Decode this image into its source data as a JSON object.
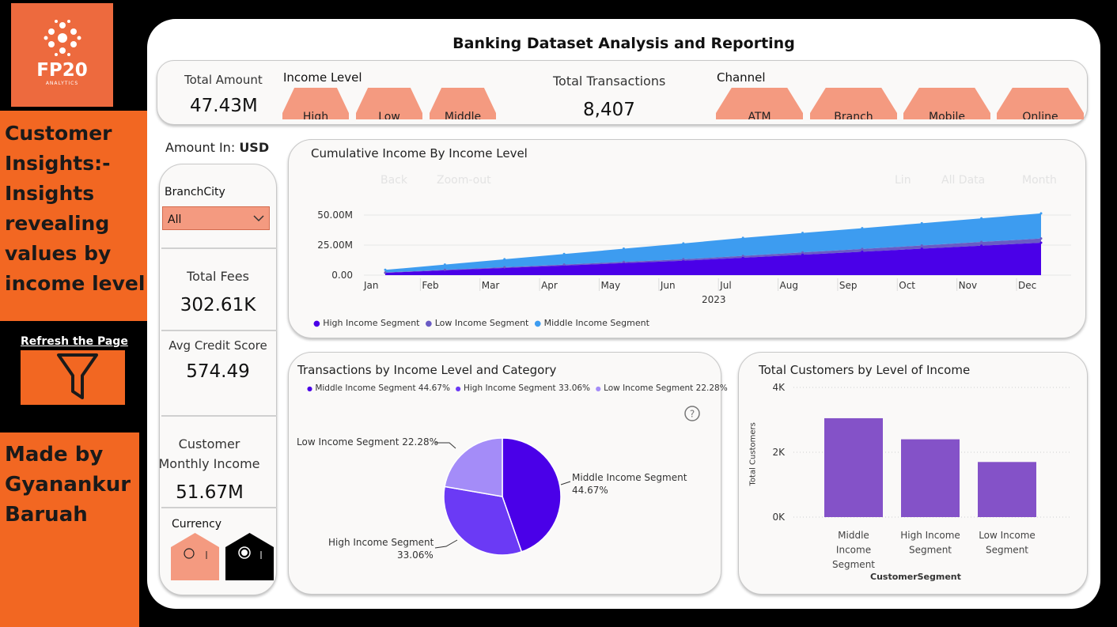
{
  "logo": {
    "word": "FP20",
    "sub": "ANALYTICS"
  },
  "left_note": "Customer Insights:- Insights revealing values by income level",
  "refresh_label": "Refresh the Page",
  "made_by": "Made by Gyanankur Baruah",
  "title": "Banking Dataset Analysis and Reporting",
  "kpis": {
    "total_amount_label": "Total Amount",
    "total_amount": "47.43M",
    "total_transactions_label": "Total Transactions",
    "total_transactions": "8,407",
    "total_fees_label": "Total Fees",
    "total_fees": "302.61K",
    "avg_credit_label": "Avg Credit Score",
    "avg_credit": "574.49",
    "monthly_income_label_1": "Customer",
    "monthly_income_label_2": "Monthly Income",
    "monthly_income": "51.67M"
  },
  "income_level": {
    "title": "Income Level",
    "options": [
      "High",
      "Low",
      "Middle"
    ]
  },
  "channel": {
    "title": "Channel",
    "options": [
      "ATM",
      "Branch",
      "Mobile",
      "Online"
    ]
  },
  "amount_in": {
    "label": "Amount In:",
    "value": "USD"
  },
  "branch_city": {
    "title": "BranchCity",
    "selected": "All"
  },
  "currency": {
    "title": "Currency"
  },
  "colors": {
    "high": "#4a00e8",
    "low": "#6a5bc4",
    "middle": "#3d9cf0",
    "bar": "#8452c8",
    "orange": "#f26722",
    "salmon": "#f49a80"
  },
  "area_chart": {
    "title": "Cumulative Income By Income Level",
    "controls": [
      "Back",
      "Zoom-out",
      "Lin",
      "All Data",
      "Month"
    ],
    "year_label": "2023",
    "legend": [
      "High Income Segment",
      "Low Income Segment",
      "Middle Income Segment"
    ]
  },
  "pie_chart": {
    "title": "Transactions by Income Level and Category",
    "legend": [
      "Middle Income Segment 44.67%",
      "High Income Segment 33.06%",
      "Low Income Segment 22.28%"
    ],
    "label_low": "Low Income Segment 22.28%",
    "label_middle_1": "Middle Income Segment",
    "label_middle_2": "44.67%",
    "label_high_1": "High Income Segment",
    "label_high_2": "33.06%"
  },
  "bar_chart": {
    "title": "Total Customers by Level of Income",
    "ylabel": "Total Customers",
    "xlabel": "CustomerSegment"
  },
  "chart_data": [
    {
      "type": "area",
      "title": "Cumulative Income By Income Level",
      "x": [
        "Jan",
        "Feb",
        "Mar",
        "Apr",
        "May",
        "Jun",
        "Jul",
        "Aug",
        "Sep",
        "Oct",
        "Nov",
        "Dec"
      ],
      "xlabel": "2023",
      "yticks": [
        "0.00",
        "25.00M",
        "50.00M"
      ],
      "ylim": [
        0,
        60000000
      ],
      "stacked": true,
      "series": [
        {
          "name": "High Income Segment",
          "values": [
            2000000,
            4000000,
            6000000,
            8000000,
            10000000,
            12000000,
            14500000,
            17000000,
            19500000,
            22000000,
            24500000,
            27000000
          ]
        },
        {
          "name": "Low Income Segment",
          "values": [
            200000,
            400000,
            600000,
            800000,
            1000000,
            1200000,
            1500000,
            1900000,
            2300000,
            2700000,
            3100000,
            3500000
          ]
        },
        {
          "name": "Middle Income Segment",
          "values": [
            2200000,
            4400000,
            6600000,
            8800000,
            11000000,
            13200000,
            15000000,
            16200000,
            17300000,
            18500000,
            19700000,
            20900000
          ]
        }
      ],
      "legend": "bottom-left",
      "grid": true
    },
    {
      "type": "pie",
      "title": "Transactions by Income Level and Category",
      "labels": [
        "Middle Income Segment",
        "High Income Segment",
        "Low Income Segment"
      ],
      "values": [
        44.67,
        33.06,
        22.28
      ],
      "legend": "top"
    },
    {
      "type": "bar",
      "title": "Total Customers by Level of Income",
      "categories": [
        "Middle Income Segment",
        "High Income Segment",
        "Low Income Segment"
      ],
      "values": [
        3050,
        2400,
        1700
      ],
      "yticks": [
        "0K",
        "2K",
        "4K"
      ],
      "ylim": [
        0,
        4000
      ],
      "ylabel": "Total Customers",
      "xlabel": "CustomerSegment",
      "grid": true
    }
  ]
}
